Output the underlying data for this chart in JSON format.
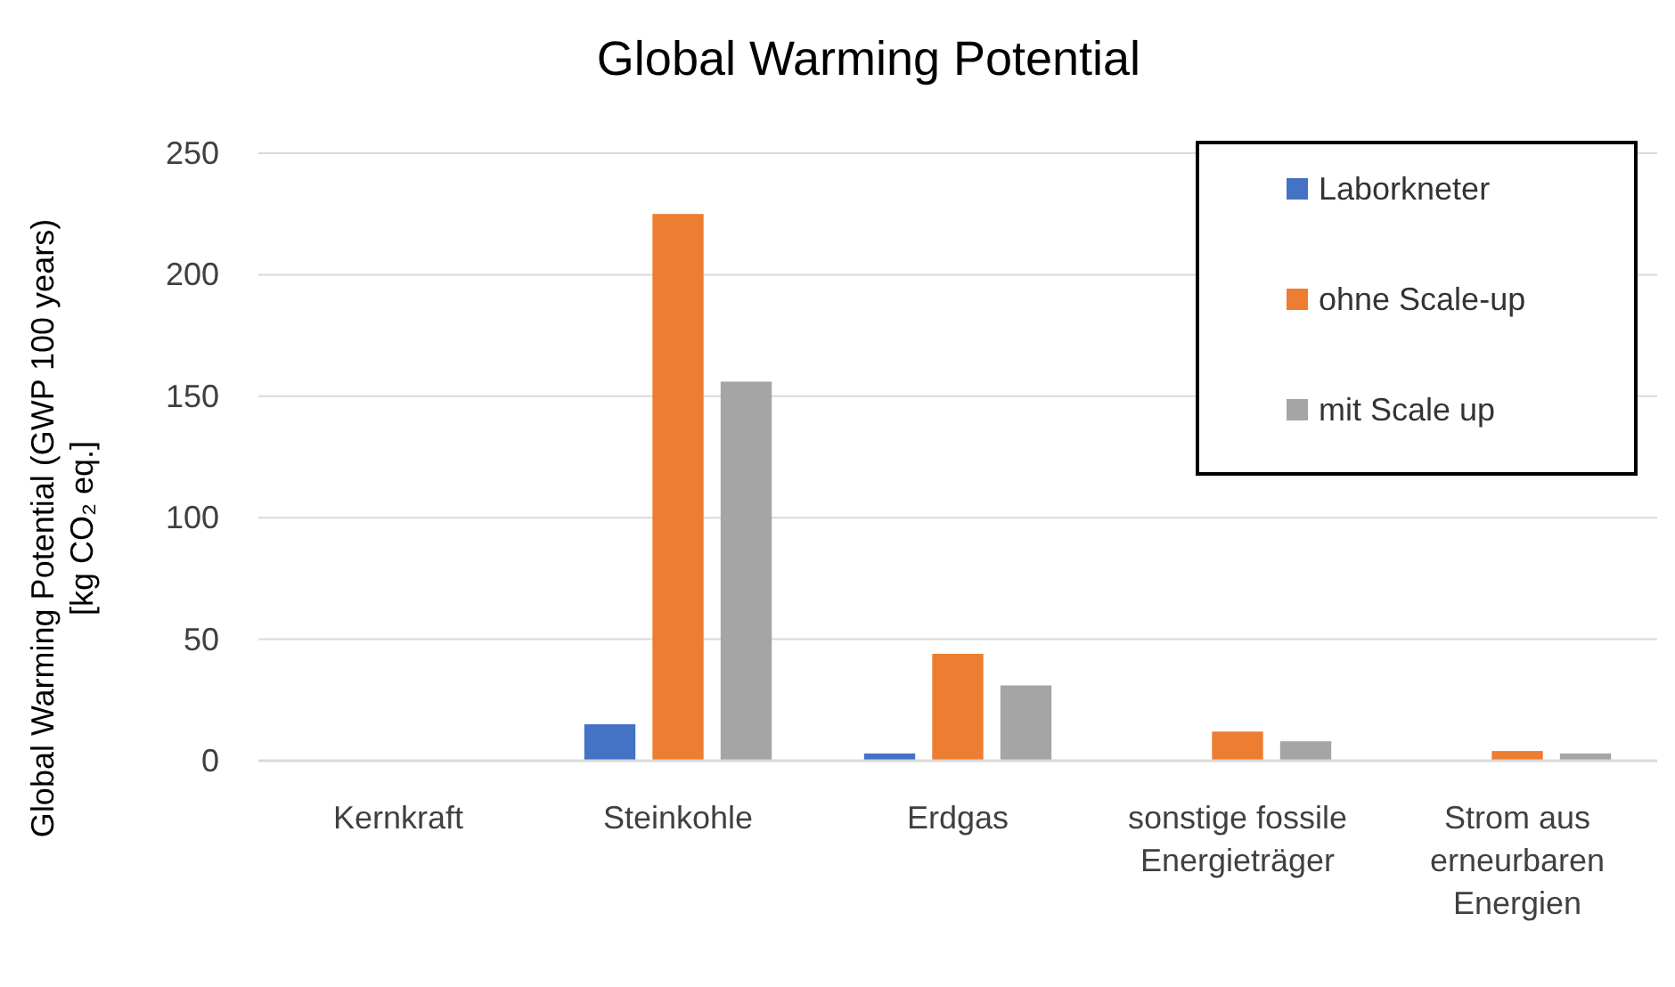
{
  "chart_data": {
    "type": "bar",
    "title": "Global Warming Potential",
    "ylabel": "Global Warming Potential (GWP 100 years)\n[kg CO₂ eq.]",
    "categories": [
      "Kernkraft",
      "Steinkohle",
      "Erdgas",
      "sonstige fossile Energieträger",
      "Strom aus erneurbaren Energien"
    ],
    "series": [
      {
        "name": "Laborkneter",
        "color": "#4472c4",
        "values": [
          0,
          15,
          3,
          0,
          0
        ]
      },
      {
        "name": "ohne Scale-up",
        "color": "#ed7d31",
        "values": [
          0,
          225,
          44,
          12,
          4
        ]
      },
      {
        "name": "mit Scale up",
        "color": "#a5a5a5",
        "values": [
          0,
          156,
          31,
          8,
          3
        ]
      }
    ],
    "ylim": [
      0,
      250
    ],
    "yticks": [
      0,
      50,
      100,
      150,
      200,
      250
    ],
    "grid": "y",
    "legend": "top right"
  }
}
